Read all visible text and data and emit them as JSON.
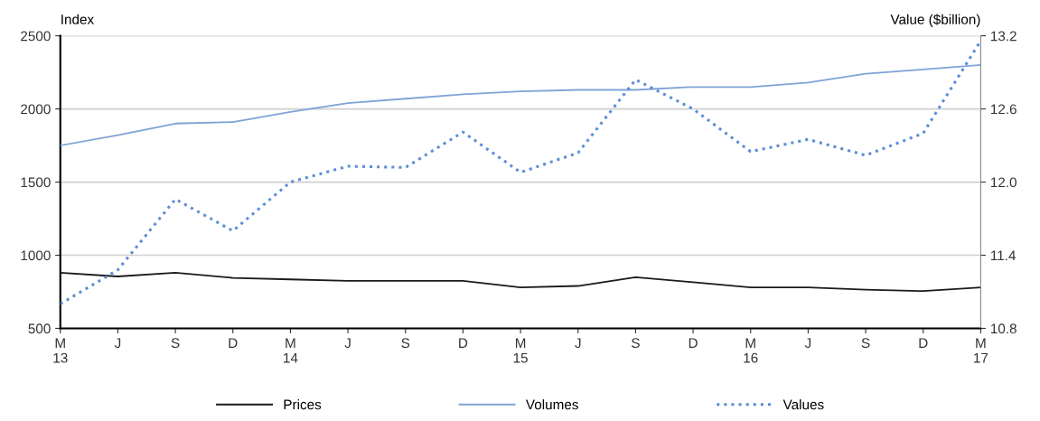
{
  "chart_data": {
    "type": "line",
    "ylabel": "Index",
    "y2label": "Value ($billion)",
    "categories": [
      "M\n13",
      "J",
      "S",
      "D",
      "M\n14",
      "J",
      "S",
      "D",
      "M\n15",
      "J",
      "S",
      "D",
      "M\n16",
      "J",
      "S",
      "D",
      "M\n17"
    ],
    "series": [
      {
        "name": "Prices",
        "color": "#1a1a1a",
        "line_style": "solid",
        "values": [
          880,
          855,
          880,
          845,
          835,
          825,
          825,
          825,
          780,
          790,
          850,
          815,
          780,
          780,
          765,
          755,
          780
        ]
      },
      {
        "name": "Volumes",
        "color": "#7fa3d6",
        "line_style": "solid",
        "values": [
          1750,
          1820,
          1900,
          1910,
          1980,
          2040,
          2070,
          2100,
          2120,
          2130,
          2130,
          2150,
          2150,
          2180,
          2240,
          2270,
          2300
        ]
      },
      {
        "name": "Values",
        "color": "#5b8ed6",
        "line_style": "dotted",
        "axis": "y2",
        "values": [
          11.0,
          11.28,
          11.86,
          11.6,
          12.0,
          12.13,
          12.12,
          12.41,
          12.08,
          12.24,
          12.84,
          12.6,
          12.25,
          12.35,
          12.22,
          12.4,
          13.16
        ]
      }
    ],
    "ylim": [
      500,
      2500
    ],
    "yticks": [
      500,
      1000,
      1500,
      2000,
      2500
    ],
    "y2lim": [
      10.8,
      13.2
    ],
    "y2ticks": [
      {
        "value": 10.8,
        "label": "10.8"
      },
      {
        "value": 11.4,
        "label": "11.4"
      },
      {
        "value": 12.0,
        "label": "12.0"
      },
      {
        "value": 12.6,
        "label": "12.6"
      },
      {
        "value": 13.2,
        "label": "13.2"
      }
    ],
    "grid": "y",
    "legend": "bottom",
    "marker": "none"
  }
}
